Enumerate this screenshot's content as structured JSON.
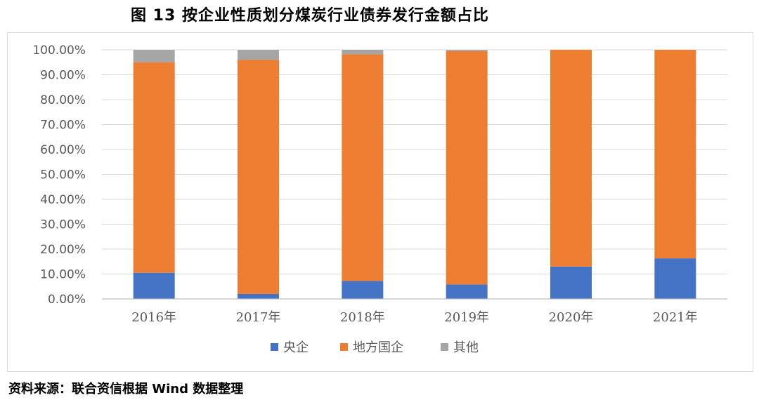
{
  "page": {
    "title": "图 13    按企业性质划分煤炭行业债券发行金额占比",
    "source": "资料来源：联合资信根据 Wind 数据整理"
  },
  "chart_data": {
    "type": "bar",
    "stacked": true,
    "categories": [
      "2016年",
      "2017年",
      "2018年",
      "2019年",
      "2020年",
      "2021年"
    ],
    "series": [
      {
        "name": "央企",
        "color": "#4472C4",
        "values": [
          10.5,
          2.0,
          7.2,
          5.8,
          13.0,
          16.3
        ]
      },
      {
        "name": "地方国企",
        "color": "#ED7D31",
        "values": [
          84.5,
          94.0,
          91.0,
          93.7,
          87.0,
          83.7
        ]
      },
      {
        "name": "其他",
        "color": "#A5A5A5",
        "values": [
          5.0,
          4.0,
          1.8,
          0.5,
          0.0,
          0.0
        ]
      }
    ],
    "ylim": [
      0,
      100
    ],
    "yticks": [
      "0.00%",
      "10.00%",
      "20.00%",
      "30.00%",
      "40.00%",
      "50.00%",
      "60.00%",
      "70.00%",
      "80.00%",
      "90.00%",
      "100.00%"
    ],
    "grid": true,
    "legend": "bottom"
  }
}
